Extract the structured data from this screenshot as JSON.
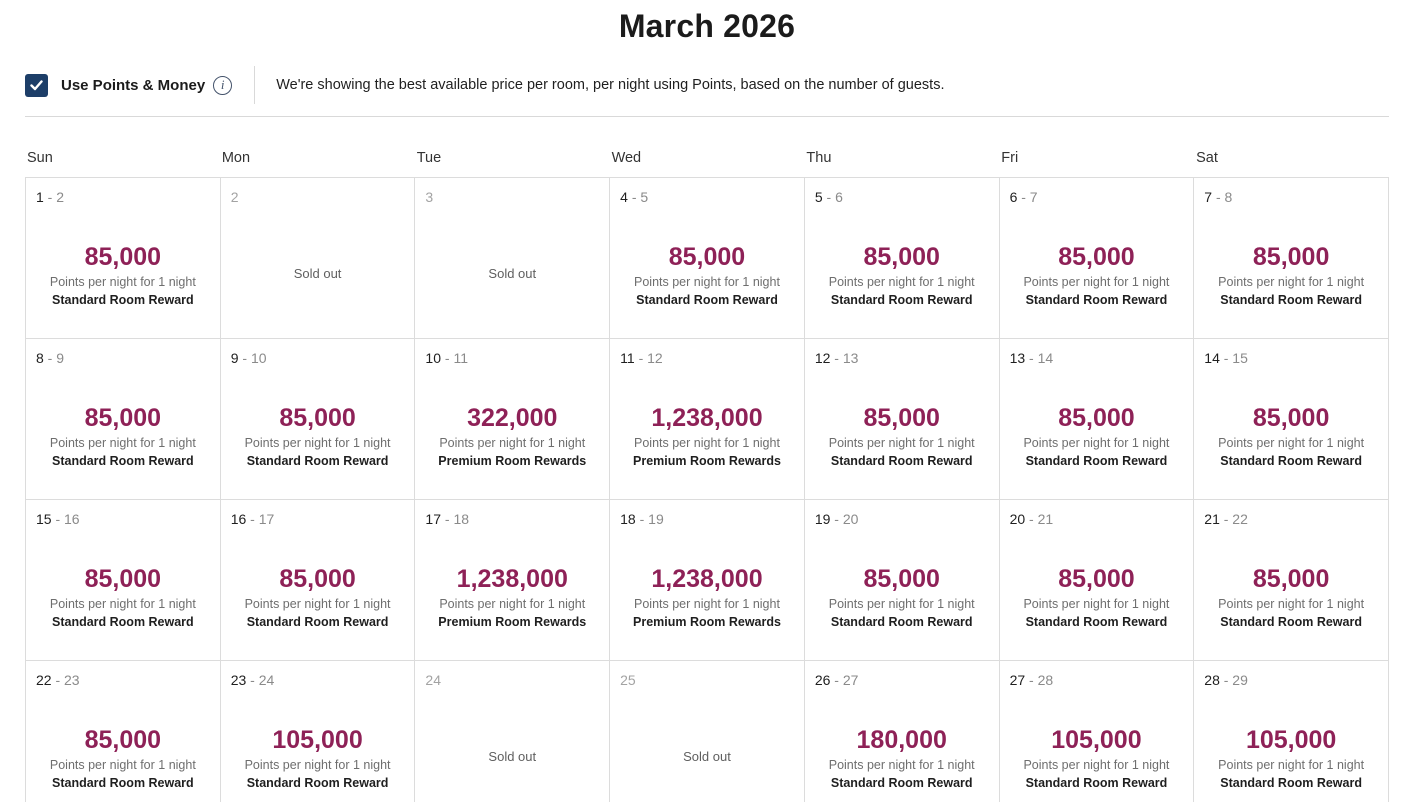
{
  "title": "March 2026",
  "toolbar": {
    "checkbox_label": "Use Points & Money",
    "checkbox_checked": true,
    "description": "We're showing the best available price per room, per night using Points, based on the number of guests."
  },
  "colors": {
    "checkbox_navy": "#1d3e68",
    "points_accent": "#8e2157",
    "grid_border": "#dcdcdc"
  },
  "calendar": {
    "weekdays": [
      "Sun",
      "Mon",
      "Tue",
      "Wed",
      "Thu",
      "Fri",
      "Sat"
    ],
    "points_caption": "Points per night for 1 night",
    "sold_out_label": "Sold out",
    "weeks": [
      [
        {
          "start": "1",
          "end": "2",
          "points": "85,000",
          "room": "Standard Room Reward",
          "sold_out": false
        },
        {
          "date": "2",
          "sold_out": true
        },
        {
          "date": "3",
          "sold_out": true
        },
        {
          "start": "4",
          "end": "5",
          "points": "85,000",
          "room": "Standard Room Reward",
          "sold_out": false
        },
        {
          "start": "5",
          "end": "6",
          "points": "85,000",
          "room": "Standard Room Reward",
          "sold_out": false
        },
        {
          "start": "6",
          "end": "7",
          "points": "85,000",
          "room": "Standard Room Reward",
          "sold_out": false
        },
        {
          "start": "7",
          "end": "8",
          "points": "85,000",
          "room": "Standard Room Reward",
          "sold_out": false
        }
      ],
      [
        {
          "start": "8",
          "end": "9",
          "points": "85,000",
          "room": "Standard Room Reward",
          "sold_out": false
        },
        {
          "start": "9",
          "end": "10",
          "points": "85,000",
          "room": "Standard Room Reward",
          "sold_out": false
        },
        {
          "start": "10",
          "end": "11",
          "points": "322,000",
          "room": "Premium Room Rewards",
          "sold_out": false
        },
        {
          "start": "11",
          "end": "12",
          "points": "1,238,000",
          "room": "Premium Room Rewards",
          "sold_out": false
        },
        {
          "start": "12",
          "end": "13",
          "points": "85,000",
          "room": "Standard Room Reward",
          "sold_out": false
        },
        {
          "start": "13",
          "end": "14",
          "points": "85,000",
          "room": "Standard Room Reward",
          "sold_out": false
        },
        {
          "start": "14",
          "end": "15",
          "points": "85,000",
          "room": "Standard Room Reward",
          "sold_out": false
        }
      ],
      [
        {
          "start": "15",
          "end": "16",
          "points": "85,000",
          "room": "Standard Room Reward",
          "sold_out": false
        },
        {
          "start": "16",
          "end": "17",
          "points": "85,000",
          "room": "Standard Room Reward",
          "sold_out": false
        },
        {
          "start": "17",
          "end": "18",
          "points": "1,238,000",
          "room": "Premium Room Rewards",
          "sold_out": false
        },
        {
          "start": "18",
          "end": "19",
          "points": "1,238,000",
          "room": "Premium Room Rewards",
          "sold_out": false
        },
        {
          "start": "19",
          "end": "20",
          "points": "85,000",
          "room": "Standard Room Reward",
          "sold_out": false
        },
        {
          "start": "20",
          "end": "21",
          "points": "85,000",
          "room": "Standard Room Reward",
          "sold_out": false
        },
        {
          "start": "21",
          "end": "22",
          "points": "85,000",
          "room": "Standard Room Reward",
          "sold_out": false
        }
      ],
      [
        {
          "start": "22",
          "end": "23",
          "points": "85,000",
          "room": "Standard Room Reward",
          "sold_out": false
        },
        {
          "start": "23",
          "end": "24",
          "points": "105,000",
          "room": "Standard Room Reward",
          "sold_out": false
        },
        {
          "date": "24",
          "sold_out": true
        },
        {
          "date": "25",
          "sold_out": true
        },
        {
          "start": "26",
          "end": "27",
          "points": "180,000",
          "room": "Standard Room Reward",
          "sold_out": false
        },
        {
          "start": "27",
          "end": "28",
          "points": "105,000",
          "room": "Standard Room Reward",
          "sold_out": false
        },
        {
          "start": "28",
          "end": "29",
          "points": "105,000",
          "room": "Standard Room Reward",
          "sold_out": false
        }
      ]
    ]
  }
}
